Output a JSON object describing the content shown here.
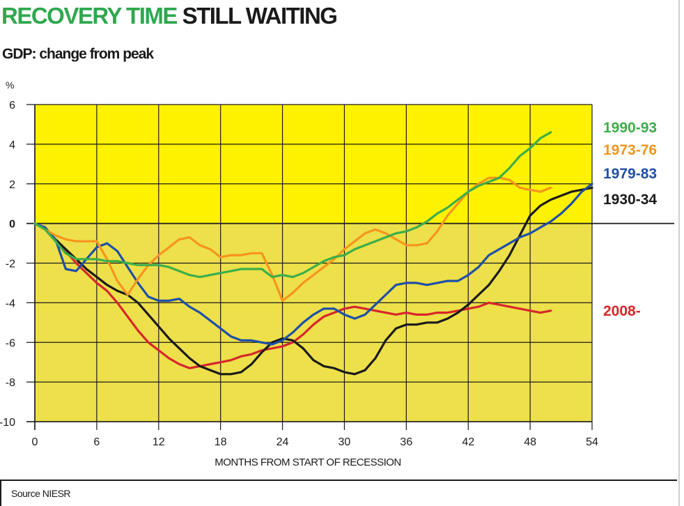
{
  "header": {
    "title_part1": "RECOVERY TIME",
    "title_part2": "STILL WAITING",
    "subtitle": "GDP:  change from peak",
    "unit": "%"
  },
  "footer": {
    "source": "Source NIESR"
  },
  "colors": {
    "title_green": "#2fa84f",
    "upper_band": "#fff200",
    "lower_band": "#ede04a",
    "grid": "#1a1a1a"
  },
  "chart_data": {
    "type": "line",
    "xlabel": "MONTHS FROM START OF RECESSION",
    "ylabel": "%",
    "xlim": [
      0,
      54
    ],
    "ylim": [
      -10,
      6
    ],
    "x_ticks": [
      0,
      6,
      12,
      18,
      24,
      30,
      36,
      42,
      48,
      54
    ],
    "y_ticks": [
      6,
      4,
      2,
      0,
      -2,
      -4,
      -6,
      -8,
      -10
    ],
    "grid": true,
    "background": "yellow above zero, darker yellow below zero",
    "legend": "right, labels beside lines",
    "series": [
      {
        "name": "1990-93",
        "color": "#3cae49",
        "x": [
          0,
          1,
          2,
          3,
          4,
          5,
          6,
          7,
          8,
          9,
          10,
          11,
          12,
          13,
          14,
          15,
          16,
          17,
          18,
          19,
          20,
          21,
          22,
          23,
          24,
          25,
          26,
          27,
          28,
          29,
          30,
          31,
          32,
          33,
          34,
          35,
          36,
          37,
          38,
          39,
          40,
          41,
          42,
          43,
          44,
          45,
          46,
          47,
          48,
          49,
          50
        ],
        "values": [
          0,
          -0.3,
          -0.9,
          -1.5,
          -1.8,
          -1.8,
          -1.8,
          -1.9,
          -1.9,
          -2.0,
          -2.1,
          -2.1,
          -2.1,
          -2.2,
          -2.4,
          -2.6,
          -2.7,
          -2.6,
          -2.5,
          -2.4,
          -2.3,
          -2.3,
          -2.3,
          -2.7,
          -2.6,
          -2.7,
          -2.5,
          -2.2,
          -1.9,
          -1.7,
          -1.6,
          -1.3,
          -1.1,
          -0.9,
          -0.7,
          -0.5,
          -0.4,
          -0.2,
          0.1,
          0.5,
          0.8,
          1.2,
          1.6,
          1.9,
          2.1,
          2.3,
          2.8,
          3.4,
          3.8,
          4.3,
          4.6
        ]
      },
      {
        "name": "1973-76",
        "color": "#f7941d",
        "x": [
          0,
          1,
          2,
          3,
          4,
          5,
          6,
          7,
          8,
          9,
          10,
          11,
          12,
          13,
          14,
          15,
          16,
          17,
          18,
          19,
          20,
          21,
          22,
          23,
          24,
          25,
          26,
          27,
          28,
          29,
          30,
          31,
          32,
          33,
          34,
          35,
          36,
          37,
          38,
          39,
          40,
          41,
          42,
          43,
          44,
          45,
          46,
          47,
          48,
          49,
          50
        ],
        "values": [
          0,
          -0.3,
          -0.6,
          -0.8,
          -0.9,
          -0.9,
          -0.9,
          -1.8,
          -2.9,
          -3.6,
          -2.8,
          -2.1,
          -1.6,
          -1.2,
          -0.8,
          -0.7,
          -1.1,
          -1.3,
          -1.7,
          -1.6,
          -1.6,
          -1.5,
          -1.5,
          -2.6,
          -3.9,
          -3.5,
          -3.0,
          -2.6,
          -2.2,
          -1.8,
          -1.3,
          -0.9,
          -0.5,
          -0.3,
          -0.5,
          -0.8,
          -1.1,
          -1.1,
          -1.0,
          -0.4,
          0.4,
          1.0,
          1.6,
          2.0,
          2.3,
          2.3,
          2.2,
          1.8,
          1.7,
          1.6,
          1.8
        ]
      },
      {
        "name": "1979-83",
        "color": "#1e4fa8",
        "x": [
          0,
          1,
          2,
          3,
          4,
          5,
          6,
          7,
          8,
          9,
          10,
          11,
          12,
          13,
          14,
          15,
          16,
          17,
          18,
          19,
          20,
          21,
          22,
          23,
          24,
          25,
          26,
          27,
          28,
          29,
          30,
          31,
          32,
          33,
          34,
          35,
          36,
          37,
          38,
          39,
          40,
          41,
          42,
          43,
          44,
          45,
          46,
          47,
          48,
          49,
          50,
          51,
          52,
          53,
          54
        ],
        "values": [
          0,
          -0.2,
          -0.8,
          -2.3,
          -2.4,
          -1.8,
          -1.2,
          -1.0,
          -1.4,
          -2.2,
          -3.0,
          -3.7,
          -3.9,
          -3.9,
          -3.8,
          -4.2,
          -4.5,
          -4.9,
          -5.3,
          -5.7,
          -5.9,
          -5.9,
          -6.0,
          -6.1,
          -5.9,
          -5.5,
          -5.0,
          -4.6,
          -4.3,
          -4.3,
          -4.6,
          -4.8,
          -4.6,
          -4.1,
          -3.6,
          -3.1,
          -3.0,
          -3.0,
          -3.1,
          -3.0,
          -2.9,
          -2.9,
          -2.6,
          -2.2,
          -1.6,
          -1.3,
          -1.0,
          -0.7,
          -0.5,
          -0.2,
          0.1,
          0.5,
          1.0,
          1.6,
          2.0
        ]
      },
      {
        "name": "1930-34",
        "color": "#1a1a1a",
        "x": [
          0,
          1,
          2,
          3,
          4,
          5,
          6,
          7,
          8,
          9,
          10,
          11,
          12,
          13,
          14,
          15,
          16,
          17,
          18,
          19,
          20,
          21,
          22,
          23,
          24,
          25,
          26,
          27,
          28,
          29,
          30,
          31,
          32,
          33,
          34,
          35,
          36,
          37,
          38,
          39,
          40,
          41,
          42,
          43,
          44,
          45,
          46,
          47,
          48,
          49,
          50,
          51,
          52,
          53,
          54
        ],
        "values": [
          0,
          -0.3,
          -0.8,
          -1.3,
          -1.8,
          -2.3,
          -2.7,
          -3.1,
          -3.4,
          -3.6,
          -4.0,
          -4.6,
          -5.2,
          -5.8,
          -6.3,
          -6.8,
          -7.2,
          -7.4,
          -7.6,
          -7.6,
          -7.5,
          -7.1,
          -6.5,
          -6.0,
          -5.8,
          -5.9,
          -6.3,
          -6.9,
          -7.2,
          -7.3,
          -7.5,
          -7.6,
          -7.4,
          -6.8,
          -5.9,
          -5.3,
          -5.1,
          -5.1,
          -5.0,
          -5.0,
          -4.8,
          -4.5,
          -4.1,
          -3.6,
          -3.1,
          -2.4,
          -1.6,
          -0.6,
          0.4,
          0.9,
          1.2,
          1.4,
          1.6,
          1.7,
          1.8
        ]
      },
      {
        "name": "2008-",
        "color": "#d7262a",
        "x": [
          0,
          1,
          2,
          3,
          4,
          5,
          6,
          7,
          8,
          9,
          10,
          11,
          12,
          13,
          14,
          15,
          16,
          17,
          18,
          19,
          20,
          21,
          22,
          23,
          24,
          25,
          26,
          27,
          28,
          29,
          30,
          31,
          32,
          33,
          34,
          35,
          36,
          37,
          38,
          39,
          40,
          41,
          42,
          43,
          44,
          45,
          46,
          47,
          48,
          49,
          50
        ],
        "values": [
          0,
          -0.3,
          -0.8,
          -1.4,
          -2.0,
          -2.5,
          -3.0,
          -3.4,
          -4.0,
          -4.7,
          -5.4,
          -6.0,
          -6.4,
          -6.8,
          -7.1,
          -7.3,
          -7.2,
          -7.1,
          -7.0,
          -6.9,
          -6.7,
          -6.6,
          -6.4,
          -6.3,
          -6.2,
          -6.0,
          -5.6,
          -5.1,
          -4.7,
          -4.5,
          -4.3,
          -4.2,
          -4.3,
          -4.4,
          -4.5,
          -4.6,
          -4.5,
          -4.6,
          -4.6,
          -4.5,
          -4.5,
          -4.4,
          -4.3,
          -4.2,
          -4.0,
          -4.1,
          -4.2,
          -4.3,
          -4.4,
          -4.5,
          -4.4
        ]
      }
    ]
  }
}
